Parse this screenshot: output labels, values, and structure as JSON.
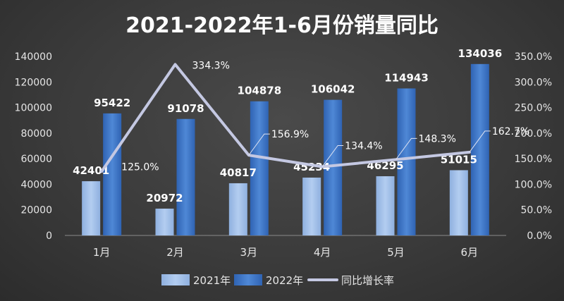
{
  "chart_data": {
    "type": "bar",
    "title": "2021-2022年1-6月份销量同比",
    "categories": [
      "1月",
      "2月",
      "3月",
      "4月",
      "5月",
      "6月"
    ],
    "series": [
      {
        "name": "2021年",
        "type": "bar",
        "axis": "left",
        "color": "#9dbbe6",
        "values": [
          42401,
          20972,
          40817,
          45234,
          46295,
          51015
        ]
      },
      {
        "name": "2022年",
        "type": "bar",
        "axis": "left",
        "color": "#3d74c6",
        "values": [
          95422,
          91078,
          104878,
          106042,
          114943,
          134036
        ]
      },
      {
        "name": "同比增长率",
        "type": "line",
        "axis": "right",
        "color": "#c4c8e2",
        "values": [
          125.0,
          334.3,
          156.9,
          134.4,
          148.3,
          162.7
        ],
        "labels": [
          "125.0%",
          "334.3%",
          "156.9%",
          "134.4%",
          "148.3%",
          "162.7%"
        ]
      }
    ],
    "y_left": {
      "min": 0,
      "max": 140000,
      "ticks": [
        "0",
        "20000",
        "40000",
        "60000",
        "80000",
        "100000",
        "120000",
        "140000"
      ]
    },
    "y_right": {
      "min": 0,
      "max": 350,
      "ticks": [
        "0.0%",
        "50.0%",
        "100.0%",
        "150.0%",
        "200.0%",
        "250.0%",
        "300.0%",
        "350.0%"
      ]
    },
    "grid": false,
    "legend_position": "bottom"
  }
}
